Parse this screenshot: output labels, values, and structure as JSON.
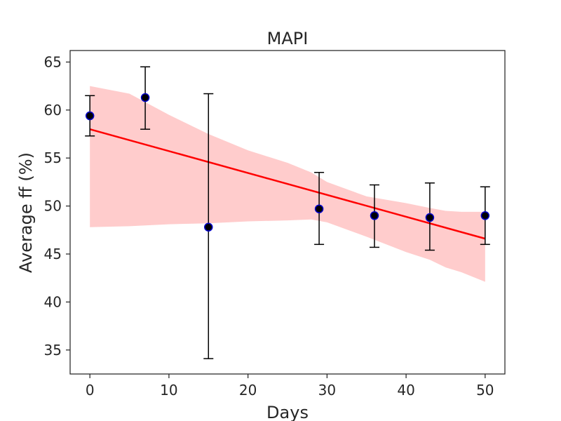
{
  "chart_data": {
    "type": "scatter",
    "title": "MAPI",
    "xlabel": "Days",
    "ylabel": "Average ff (%)",
    "xlim": [
      -2.5,
      52.5
    ],
    "ylim": [
      32.5,
      66.2
    ],
    "xticks": [
      0,
      10,
      20,
      30,
      40,
      50
    ],
    "yticks": [
      35,
      40,
      45,
      50,
      55,
      60,
      65
    ],
    "grid": false,
    "points": {
      "x": [
        0,
        7,
        15,
        29,
        36,
        43,
        50
      ],
      "y": [
        59.4,
        61.3,
        47.8,
        49.7,
        49.0,
        48.8,
        49.0
      ],
      "yerr_low": [
        57.3,
        58.0,
        34.1,
        46.0,
        45.7,
        45.4,
        46.0
      ],
      "yerr_high": [
        61.5,
        64.5,
        61.7,
        53.5,
        52.2,
        52.4,
        52.0
      ],
      "color": "#0000cc",
      "edge_color": "#000000"
    },
    "fit_line": {
      "x": [
        0,
        50
      ],
      "y": [
        58.0,
        46.6
      ],
      "color": "#ff0000"
    },
    "confidence_band": {
      "color": "#ffcccc",
      "x": [
        0,
        5,
        10,
        15,
        20,
        25,
        28,
        30,
        35,
        40,
        43,
        45,
        47,
        50
      ],
      "upper": [
        62.5,
        61.7,
        59.5,
        57.5,
        55.8,
        54.5,
        53.5,
        52.5,
        51.0,
        50.3,
        49.8,
        49.5,
        49.4,
        49.4
      ],
      "lower": [
        47.8,
        47.9,
        48.1,
        48.2,
        48.4,
        48.5,
        48.6,
        48.3,
        46.8,
        45.2,
        44.4,
        43.6,
        43.1,
        42.1
      ]
    }
  }
}
